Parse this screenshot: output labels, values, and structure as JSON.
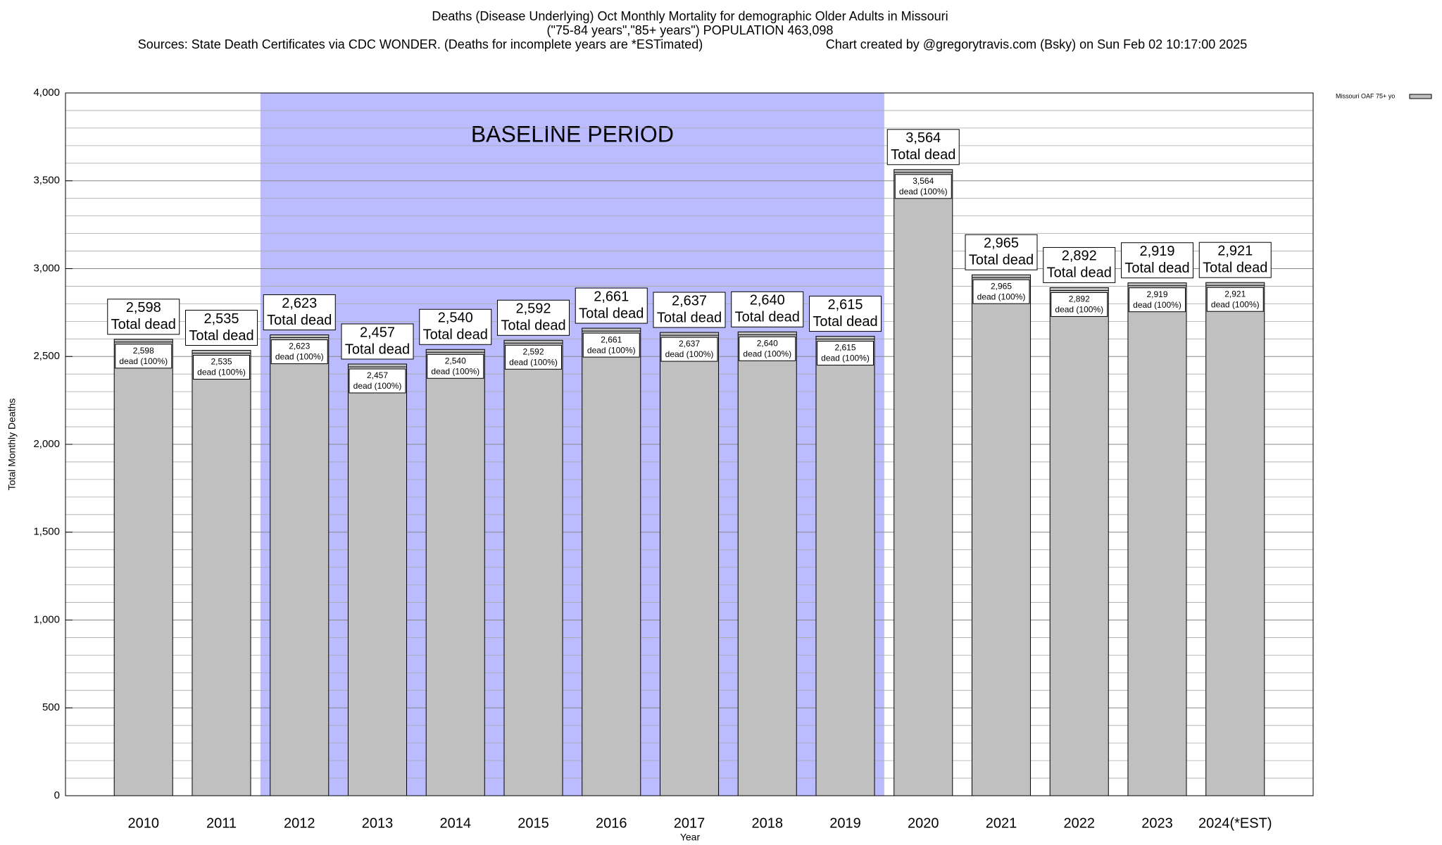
{
  "chart_data": {
    "type": "bar",
    "title": "Deaths (Disease Underlying) Oct Monthly Mortality for demographic Older Adults in Missouri",
    "subtitle": "(\"75-84 years\",\"85+ years\") POPULATION 463,098",
    "sources": "Sources: State Death Certificates via CDC WONDER. (Deaths for incomplete years are *ESTimated)",
    "credit": "Chart created by @gregorytravis.com (Bsky) on Sun Feb 02 10:17:00 2025",
    "x_label": "Year",
    "y_label": "Total Monthly Deaths",
    "categories": [
      "2010",
      "2011",
      "2012",
      "2013",
      "2014",
      "2015",
      "2016",
      "2017",
      "2018",
      "2019",
      "2020",
      "2021",
      "2022",
      "2023",
      "2024(*EST)"
    ],
    "series": [
      {
        "name": "Missouri OAF 75+ yo",
        "color": "#c0c0c0",
        "values": [
          2598,
          2535,
          2623,
          2457,
          2540,
          2592,
          2661,
          2637,
          2640,
          2615,
          3564,
          2965,
          2892,
          2919,
          2921
        ],
        "value_labels": [
          "2,598",
          "2,535",
          "2,623",
          "2,457",
          "2,540",
          "2,592",
          "2,661",
          "2,637",
          "2,640",
          "2,615",
          "3,564",
          "2,965",
          "2,892",
          "2,919",
          "2,921"
        ]
      }
    ],
    "outer_label_text": "Total dead",
    "inner_label_text": "dead (100%)",
    "shaded_region": {
      "label": "BASELINE PERIOD",
      "from": "2012",
      "to": "2019",
      "color": "#bbbbff"
    },
    "ylim": [
      0,
      4000
    ],
    "yticks": [
      0,
      500,
      {
        "value": 1000,
        "label": "1,000"
      },
      {
        "value": 1500,
        "label": "1,500"
      },
      {
        "value": 2000,
        "label": "2,000"
      },
      {
        "value": 2500,
        "label": "2,500"
      },
      {
        "value": 3000,
        "label": "3,000"
      },
      {
        "value": 3500,
        "label": "3,500"
      },
      {
        "value": 4000,
        "label": "4,000"
      }
    ],
    "minor_yticks": [
      100,
      200,
      300,
      400,
      600,
      700,
      800,
      900,
      1100,
      1200,
      1300,
      1400,
      1600,
      1700,
      1800,
      1900,
      2100,
      2200,
      2300,
      2400,
      2600,
      2700,
      2800,
      2900,
      3100,
      3200,
      3300,
      3400,
      3600,
      3700,
      3800,
      3900
    ],
    "grid": true,
    "legend": "top-right"
  }
}
